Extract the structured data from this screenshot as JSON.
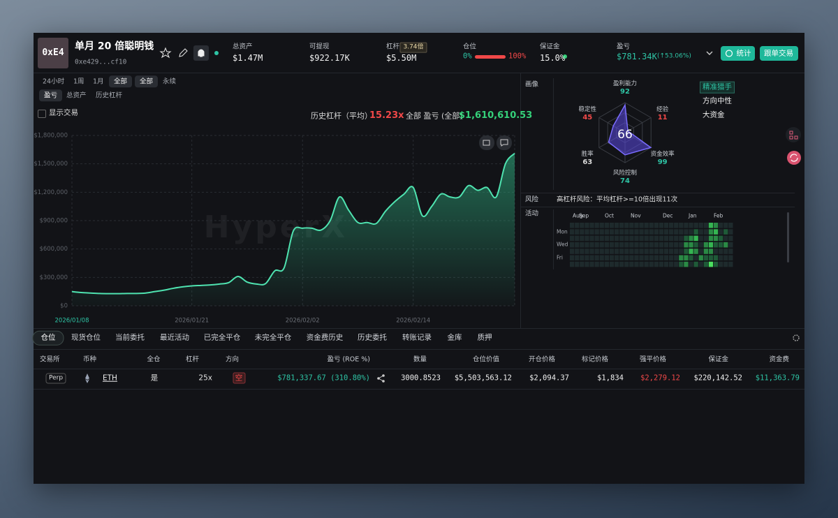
{
  "header": {
    "avatar": "0xE4",
    "name": "单月 20 倍聪明钱",
    "address": "0xe429...cf10",
    "stats": [
      {
        "label": "总资产",
        "value": "$1.47M"
      },
      {
        "label": "可提现",
        "value": "$922.17K"
      },
      {
        "label": "杠杆",
        "badge": "3.74倍",
        "value": "$5.50M"
      },
      {
        "label": "仓位",
        "left": "0%",
        "right": "100%"
      },
      {
        "label": "保证金",
        "value": "15.0%"
      },
      {
        "label": "盈亏",
        "value": "$781.34K",
        "change": "(↑53.06%)"
      }
    ],
    "buttons": [
      "统计",
      "跟单交易"
    ]
  },
  "filters": {
    "ranges": [
      "24小时",
      "1周",
      "1月",
      "全部"
    ],
    "markets": [
      "全部",
      "永续"
    ],
    "metrics": [
      "盈亏",
      "总资产",
      "历史杠杆"
    ],
    "show_trades": "显示交易"
  },
  "summary": {
    "leverage_label": "历史杠杆（平均）",
    "leverage": "15.23x",
    "pnl_label": "全部 盈亏 (全部)",
    "pnl": "$1,610,610.53"
  },
  "chart_data": {
    "type": "area",
    "watermark": "HyperX",
    "color": "#4fe3b0",
    "x": [
      "2026/01/08",
      "2026/01/09",
      "2026/01/10",
      "2026/01/11",
      "2026/01/12",
      "2026/01/13",
      "2026/01/14",
      "2026/01/15",
      "2026/01/16",
      "2026/01/17",
      "2026/01/18",
      "2026/01/19",
      "2026/01/20",
      "2026/01/21",
      "2026/01/22",
      "2026/01/23",
      "2026/01/24",
      "2026/01/25",
      "2026/01/26",
      "2026/01/27",
      "2026/01/28",
      "2026/01/29",
      "2026/01/30",
      "2026/01/31",
      "2026/02/01",
      "2026/02/02",
      "2026/02/03",
      "2026/02/04",
      "2026/02/05",
      "2026/02/06",
      "2026/02/07",
      "2026/02/08",
      "2026/02/09",
      "2026/02/10",
      "2026/02/11",
      "2026/02/12",
      "2026/02/13",
      "2026/02/14",
      "2026/02/15",
      "2026/02/16",
      "2026/02/17",
      "2026/02/18",
      "2026/02/19",
      "2026/02/20",
      "2026/02/21",
      "2026/02/22",
      "2026/02/23",
      "2026/02/24",
      "2026/02/25"
    ],
    "values": [
      150000,
      140000,
      135000,
      130000,
      128000,
      128000,
      130000,
      130000,
      135000,
      150000,
      165000,
      185000,
      200000,
      210000,
      215000,
      220000,
      230000,
      245000,
      310000,
      250000,
      230000,
      235000,
      370000,
      400000,
      790000,
      820000,
      820000,
      800000,
      900000,
      1150000,
      1010000,
      880000,
      880000,
      870000,
      1000000,
      1100000,
      1180000,
      1250000,
      950000,
      1050000,
      1180000,
      1150000,
      1150000,
      1270000,
      1220000,
      1250000,
      1150000,
      1500000,
      1610610.53
    ],
    "xlim": [
      "2026/01/08",
      "2026/02/25"
    ],
    "xticks": [
      "2026/01/08",
      "2026/01/21",
      "2026/02/02",
      "2026/02/14"
    ],
    "ylim": [
      0,
      1800000
    ],
    "yticks": [
      {
        "value": 0,
        "label": "$0"
      },
      {
        "value": 300000,
        "label": "$300,000"
      },
      {
        "value": 600000,
        "label": "$600,000"
      },
      {
        "value": 900000,
        "label": "$900,000"
      },
      {
        "value": 1200000,
        "label": "$1,200,000"
      },
      {
        "value": 1500000,
        "label": "$1,500,000"
      },
      {
        "value": 1800000,
        "label": "$1,800,000"
      }
    ],
    "grid": true
  },
  "profile": {
    "title": "画像",
    "score": 66,
    "rlim": [
      0,
      100
    ],
    "metrics": [
      {
        "label": "盈利能力",
        "value": 92,
        "color": "#2ec4a5"
      },
      {
        "label": "经验",
        "value": 11,
        "color": "#f04848"
      },
      {
        "label": "资金效率",
        "value": 99,
        "color": "#2ec4a5"
      },
      {
        "label": "风险控制",
        "value": 74,
        "color": "#2ec4a5"
      },
      {
        "label": "胜率",
        "value": 63,
        "color": "#d8d8d8"
      },
      {
        "label": "稳定性",
        "value": 45,
        "color": "#f04848"
      }
    ],
    "tags": [
      "精准猎手",
      "方向中性",
      "大资金"
    ]
  },
  "risk": {
    "label": "风险",
    "text": "高杠杆风险：平均杠杆>=10倍出现11次"
  },
  "activity": {
    "label": "活动",
    "months": [
      "Aug",
      "Sep",
      "Oct",
      "Nov",
      "Dec",
      "Jan",
      "Feb"
    ],
    "days": [
      "Mon",
      "Wed",
      "Fri"
    ],
    "levels": [
      [
        0,
        0,
        0,
        0,
        0,
        0,
        0,
        0,
        0,
        0,
        0,
        0,
        0,
        0,
        0,
        0,
        0,
        0,
        0,
        0,
        0,
        0,
        0,
        0,
        0,
        0,
        0,
        0,
        3,
        2,
        0,
        0,
        0
      ],
      [
        0,
        0,
        0,
        0,
        0,
        0,
        0,
        0,
        0,
        0,
        0,
        0,
        0,
        0,
        0,
        0,
        0,
        0,
        0,
        0,
        0,
        0,
        0,
        0,
        0,
        1,
        0,
        0,
        2,
        3,
        0,
        1,
        0
      ],
      [
        0,
        0,
        0,
        0,
        0,
        0,
        0,
        0,
        0,
        0,
        0,
        0,
        0,
        0,
        0,
        0,
        0,
        0,
        0,
        0,
        0,
        0,
        0,
        1,
        2,
        3,
        0,
        0,
        2,
        2,
        1,
        0,
        0
      ],
      [
        0,
        0,
        0,
        0,
        0,
        0,
        0,
        0,
        0,
        0,
        0,
        0,
        0,
        0,
        0,
        0,
        0,
        0,
        0,
        0,
        0,
        0,
        0,
        2,
        2,
        1,
        0,
        2,
        3,
        1,
        1,
        2,
        0
      ],
      [
        0,
        0,
        0,
        0,
        0,
        0,
        0,
        0,
        0,
        0,
        0,
        0,
        0,
        0,
        0,
        0,
        0,
        0,
        0,
        0,
        0,
        0,
        0,
        1,
        3,
        2,
        0,
        2,
        2,
        0,
        0,
        0,
        0
      ],
      [
        0,
        0,
        0,
        0,
        0,
        0,
        0,
        0,
        0,
        0,
        0,
        0,
        0,
        0,
        0,
        0,
        0,
        0,
        0,
        0,
        0,
        0,
        2,
        2,
        1,
        0,
        2,
        1,
        1,
        1,
        0,
        0,
        0
      ],
      [
        0,
        0,
        0,
        0,
        0,
        0,
        0,
        0,
        0,
        0,
        0,
        0,
        0,
        0,
        0,
        0,
        0,
        0,
        0,
        0,
        0,
        0,
        1,
        2,
        0,
        1,
        0,
        1,
        4,
        1,
        0,
        0,
        0
      ]
    ]
  },
  "table": {
    "tabs": [
      "仓位",
      "现货仓位",
      "当前委托",
      "最近活动",
      "已完全平仓",
      "未完全平仓",
      "资金费历史",
      "历史委托",
      "转账记录",
      "金库",
      "质押"
    ],
    "columns": [
      "交易所",
      "币种",
      "全仓",
      "杠杆",
      "方向",
      "盈亏 (ROE %)",
      "数量",
      "仓位价值",
      "开仓价格",
      "标记价格",
      "强平价格",
      "保证金",
      "资金费"
    ],
    "rows": [
      [
        "Perp",
        "ETH",
        "是",
        "25x",
        "空",
        "$781,337.67 (310.80%)",
        "3000.8523",
        "$5,503,563.12",
        "$2,094.37",
        "$1,834",
        "$2,279.12",
        "$220,142.52",
        "$11,363.79"
      ]
    ]
  }
}
